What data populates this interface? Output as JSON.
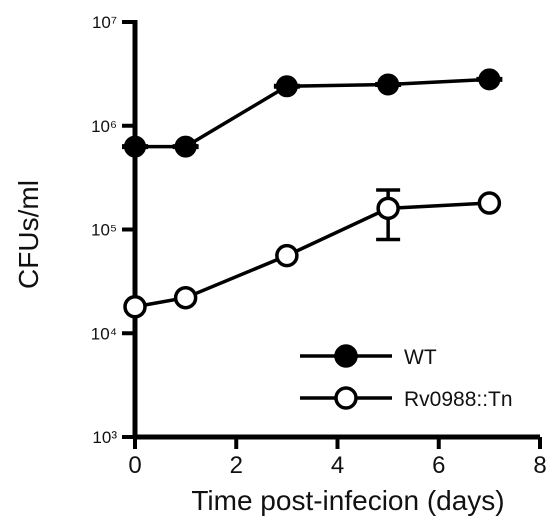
{
  "chart_data": {
    "type": "line",
    "xlabel": "Time post-infecion (days)",
    "ylabel": "CFUs/ml",
    "xlim": [
      0,
      8
    ],
    "ylim_log10": [
      3,
      7
    ],
    "y_scale": "log",
    "x_ticks": [
      0,
      2,
      4,
      6,
      8
    ],
    "x_tick_labels": [
      "0",
      "2",
      "4",
      "6",
      "8"
    ],
    "y_ticks": [
      1000,
      10000,
      100000,
      1000000,
      10000000
    ],
    "y_tick_labels": [
      "10³",
      "10⁴",
      "10⁵",
      "10⁶",
      "10⁷"
    ],
    "grid": false,
    "legend_position": "bottom-right",
    "series": [
      {
        "name": "WT",
        "marker": "filled-circle",
        "x": [
          0,
          1,
          3,
          5,
          7
        ],
        "y": [
          630000,
          630000,
          2400000,
          2500000,
          2800000
        ]
      },
      {
        "name": "Rv0988::Tn",
        "marker": "open-circle",
        "x": [
          0,
          1,
          3,
          5,
          7
        ],
        "y": [
          18000,
          22000,
          56000,
          160000,
          180000
        ],
        "error": [
          0,
          0,
          0,
          80000,
          0
        ]
      }
    ]
  }
}
